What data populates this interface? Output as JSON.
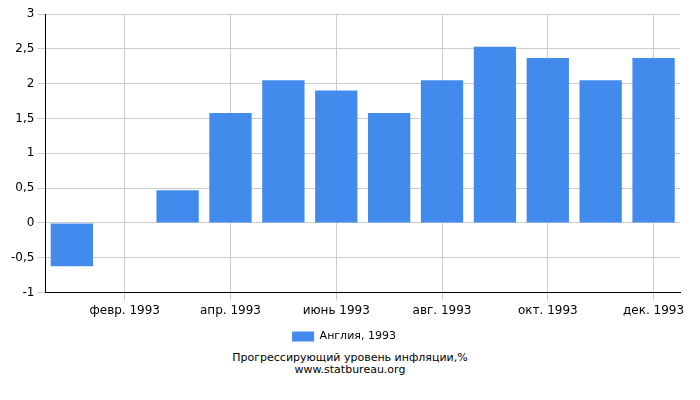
{
  "chart_data": {
    "type": "bar",
    "title": "Прогрессирующий уровень инфляции,%",
    "subtitle": "www.statbureau.org",
    "categories": [
      null,
      "февр. 1993",
      null,
      "апр. 1993",
      null,
      "июнь 1993",
      null,
      "авг. 1993",
      null,
      "окт. 1993",
      null,
      "дек. 1993"
    ],
    "series": [
      {
        "name": "Англия, 1993",
        "color": "#428bed",
        "values": [
          -0.62,
          0,
          0.47,
          1.58,
          2.05,
          1.9,
          1.58,
          2.05,
          2.53,
          2.37,
          2.05,
          2.37
        ]
      }
    ],
    "ylim": [
      -1,
      3
    ],
    "yticks": [
      -1,
      {
        "value": -0.5,
        "label": "-0,5"
      },
      0,
      {
        "value": 0.5,
        "label": "0,5"
      },
      1,
      {
        "value": 1.5,
        "label": "1,5"
      },
      2,
      {
        "value": 2.5,
        "label": "2,5"
      },
      3
    ],
    "grid": true,
    "legend": "bottom"
  }
}
